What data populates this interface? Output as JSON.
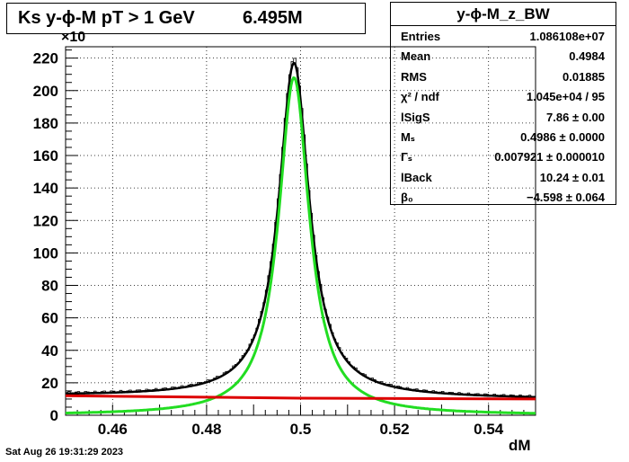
{
  "title": {
    "main": "Ks y-ϕ-M pT > 1 GeV",
    "count": "6.495M"
  },
  "stats": {
    "name": "y-ϕ-M_z_BW",
    "rows": [
      {
        "key": "Entries",
        "value": "1.086108e+07"
      },
      {
        "key": "Mean",
        "value": "0.4984"
      },
      {
        "key": "RMS",
        "value": "0.01885"
      },
      {
        "key": "χ² / ndf",
        "value": "1.045e+04 / 95"
      },
      {
        "key": "lSigS",
        "value": "7.86 ± 0.00"
      },
      {
        "key": "Mₛ",
        "value": "0.4986 ± 0.0000"
      },
      {
        "key": "Γₛ",
        "value": "0.007921 ± 0.000010"
      },
      {
        "key": "lBack",
        "value": "10.24 ± 0.01"
      },
      {
        "key": "β₀",
        "value": "−4.598 ± 0.064"
      }
    ]
  },
  "footer": {
    "date": "Sat Aug 26 19:31:29 2023"
  },
  "chart_data": {
    "type": "line",
    "xlabel": "dM",
    "ylabel": "",
    "y_exponent_label": "×10",
    "xlim": [
      0.45,
      0.55
    ],
    "ylim": [
      0,
      227
    ],
    "x_ticks": [
      "0.46",
      "0.48",
      "0.5",
      "0.52",
      "0.54"
    ],
    "x_tick_values": [
      0.46,
      0.48,
      0.5,
      0.52,
      0.54
    ],
    "y_ticks": [
      "0",
      "20",
      "40",
      "60",
      "80",
      "100",
      "120",
      "140",
      "160",
      "180",
      "200",
      "220"
    ],
    "y_tick_values": [
      0,
      20,
      40,
      60,
      80,
      100,
      120,
      140,
      160,
      180,
      200,
      220
    ],
    "grid": true,
    "model": {
      "peak_mass": 0.4986,
      "width": 0.007921,
      "signal_peak": 208,
      "total_peak": 218,
      "background_start": 12,
      "background_end": 10
    },
    "series": [
      {
        "color": "#000000",
        "style": "histogram",
        "x": [
          0.45,
          0.46,
          0.47,
          0.48,
          0.485,
          0.49,
          0.492,
          0.494,
          0.496,
          0.497,
          0.498,
          0.499,
          0.5,
          0.501,
          0.502,
          0.504,
          0.506,
          0.508,
          0.51,
          0.515,
          0.52,
          0.53,
          0.54,
          0.55
        ],
        "values": [
          13,
          14,
          16,
          22,
          30,
          50,
          70,
          103,
          152,
          182,
          210,
          218,
          208,
          180,
          147,
          97,
          67,
          49,
          38,
          25,
          20,
          15,
          13,
          11
        ]
      },
      {
        "color": "#000000",
        "style": "line",
        "x": [
          0.45,
          0.46,
          0.47,
          0.48,
          0.485,
          0.49,
          0.492,
          0.494,
          0.496,
          0.497,
          0.498,
          0.499,
          0.5,
          0.501,
          0.502,
          0.504,
          0.506,
          0.508,
          0.51,
          0.515,
          0.52,
          0.53,
          0.54,
          0.55
        ],
        "values": [
          13,
          14,
          16,
          22,
          29,
          49,
          69,
          102,
          150,
          182,
          210,
          218,
          206,
          178,
          146,
          96,
          66,
          48,
          37,
          24,
          19,
          14.5,
          12.5,
          11
        ]
      },
      {
        "color": "#22dd22",
        "style": "line",
        "x": [
          0.45,
          0.46,
          0.47,
          0.48,
          0.485,
          0.49,
          0.492,
          0.494,
          0.496,
          0.497,
          0.498,
          0.499,
          0.5,
          0.501,
          0.502,
          0.504,
          0.506,
          0.508,
          0.51,
          0.515,
          0.52,
          0.53,
          0.54,
          0.55
        ],
        "values": [
          1,
          2,
          4,
          10,
          18,
          37,
          58,
          92,
          140,
          172,
          200,
          208,
          195,
          168,
          135,
          85,
          55,
          37,
          26,
          12,
          6,
          2.5,
          1.5,
          1
        ]
      },
      {
        "color": "#dd0000",
        "style": "line",
        "x": [
          0.45,
          0.5,
          0.55
        ],
        "values": [
          12,
          10.5,
          10
        ]
      }
    ]
  }
}
